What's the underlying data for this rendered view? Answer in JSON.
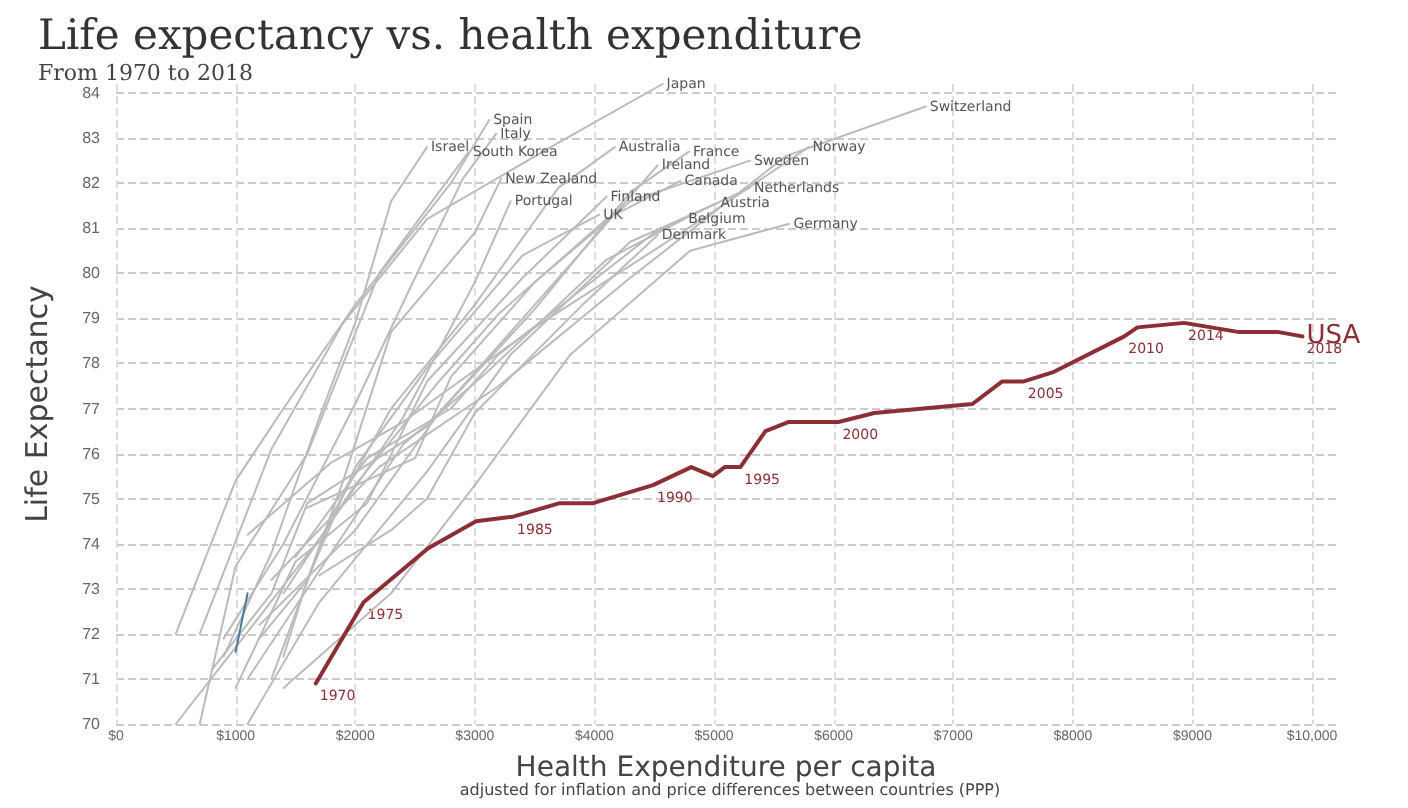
{
  "chart_data": {
    "type": "line",
    "title": "Life expectancy vs. health expenditure",
    "subtitle": "From 1970 to 2018",
    "xlabel": "Health Expenditure per capita",
    "ylabel": "Life Expectancy",
    "annotations": [
      "adjusted for inflation and price differences between countries (PPP)",
      {
        "text": "1970",
        "x": 1670,
        "y": 70.9
      },
      {
        "text": "1975",
        "x": 2070,
        "y": 72.7
      },
      {
        "text": "1985",
        "x": 3320,
        "y": 74.6
      },
      {
        "text": "1990",
        "x": 4490,
        "y": 75.3
      },
      {
        "text": "1995",
        "x": 5220,
        "y": 75.7
      },
      {
        "text": "2000",
        "x": 6040,
        "y": 76.7
      },
      {
        "text": "2005",
        "x": 7590,
        "y": 77.6
      },
      {
        "text": "2010",
        "x": 8430,
        "y": 78.6
      },
      {
        "text": "2014",
        "x": 8930,
        "y": 78.9
      },
      {
        "text": "2018",
        "x": 9920,
        "y": 78.6
      }
    ],
    "xlim": [
      0,
      10200
    ],
    "ylim": [
      70,
      84.2
    ],
    "xticks": [
      {
        "value": 0,
        "label": "$0"
      },
      {
        "value": 1000,
        "label": "$1000"
      },
      {
        "value": 2000,
        "label": "$2000"
      },
      {
        "value": 3000,
        "label": "$3000"
      },
      {
        "value": 4000,
        "label": "$4000"
      },
      {
        "value": 5000,
        "label": "$5000"
      },
      {
        "value": 6000,
        "label": "$6000"
      },
      {
        "value": 7000,
        "label": "$7000"
      },
      {
        "value": 8000,
        "label": "$8000"
      },
      {
        "value": 9000,
        "label": "$9000"
      },
      {
        "value": 10000,
        "label": "$10,000"
      }
    ],
    "yticks": [
      70,
      71,
      72,
      73,
      74,
      75,
      76,
      77,
      78,
      79,
      80,
      81,
      82,
      83,
      84
    ],
    "grid": true,
    "legend": false,
    "marker": "none",
    "line_style": "solid",
    "series": [
      {
        "name": "Japan",
        "color": "#bbbbbb",
        "x": [
          700,
          1300,
          1900,
          2600,
          3700,
          4570
        ],
        "values": [
          72.0,
          76.1,
          78.9,
          81.2,
          82.9,
          84.2
        ]
      },
      {
        "name": "Switzerland",
        "color": "#bbbbbb",
        "x": [
          1300,
          2200,
          3200,
          4300,
          5600,
          6770
        ],
        "values": [
          73.2,
          75.7,
          77.5,
          79.9,
          82.6,
          83.7
        ]
      },
      {
        "name": "Spain",
        "color": "#bbbbbb",
        "x": [
          500,
          1000,
          1400,
          2000,
          2800,
          3120
        ],
        "values": [
          72.0,
          75.4,
          77.0,
          79.3,
          82.0,
          83.4
        ]
      },
      {
        "name": "Italy",
        "color": "#bbbbbb",
        "x": [
          900,
          1400,
          2000,
          2500,
          2900,
          3180
        ],
        "values": [
          71.9,
          74.0,
          77.1,
          79.9,
          82.1,
          83.1
        ]
      },
      {
        "name": "Israel",
        "color": "#bbbbbb",
        "x": [
          900,
          1300,
          1700,
          2000,
          2300,
          2600
        ],
        "values": [
          71.5,
          73.8,
          76.8,
          78.9,
          81.6,
          82.8
        ]
      },
      {
        "name": "South Korea",
        "color": "#bbbbbb",
        "x": [
          700,
          1000,
          1600,
          2200,
          2950
        ],
        "values": [
          70.0,
          73.5,
          76.0,
          80.0,
          82.7
        ]
      },
      {
        "name": "Australia",
        "color": "#bbbbbb",
        "x": [
          1300,
          1800,
          2300,
          3000,
          3700,
          4170
        ],
        "values": [
          71.0,
          74.6,
          77.0,
          79.3,
          81.9,
          82.8
        ]
      },
      {
        "name": "France",
        "color": "#bbbbbb",
        "x": [
          1200,
          2000,
          2700,
          3500,
          4300,
          4790
        ],
        "values": [
          72.2,
          74.3,
          76.9,
          79.2,
          81.8,
          82.7
        ]
      },
      {
        "name": "Norway",
        "color": "#bbbbbb",
        "x": [
          1100,
          1800,
          2400,
          3500,
          4900,
          5790
        ],
        "values": [
          74.2,
          75.8,
          76.7,
          78.8,
          81.2,
          82.8
        ]
      },
      {
        "name": "Sweden",
        "color": "#bbbbbb",
        "x": [
          1600,
          2500,
          2800,
          3500,
          4300,
          5300
        ],
        "values": [
          74.8,
          75.9,
          77.7,
          79.8,
          81.6,
          82.5
        ]
      },
      {
        "name": "Ireland",
        "color": "#bbbbbb",
        "x": [
          800,
          1300,
          1600,
          2600,
          4000,
          4530
        ],
        "values": [
          71.2,
          72.9,
          74.9,
          76.6,
          80.8,
          82.4
        ]
      },
      {
        "name": "Canada",
        "color": "#bbbbbb",
        "x": [
          1400,
          2000,
          2700,
          3200,
          4100,
          4720
        ],
        "values": [
          72.9,
          75.3,
          77.6,
          79.1,
          81.2,
          82.05
        ]
      },
      {
        "name": "Netherlands",
        "color": "#bbbbbb",
        "x": [
          1500,
          2100,
          2800,
          3200,
          4500,
          5300
        ],
        "values": [
          73.7,
          75.9,
          77.0,
          78.2,
          80.9,
          81.9
        ]
      },
      {
        "name": "Austria",
        "color": "#bbbbbb",
        "x": [
          1100,
          1700,
          2600,
          3300,
          4300,
          5020
        ],
        "values": [
          70.0,
          72.7,
          75.6,
          78.2,
          80.7,
          81.55
        ]
      },
      {
        "name": "Belgium",
        "color": "#bbbbbb",
        "x": [
          1100,
          1700,
          2400,
          3100,
          4100,
          4750
        ],
        "values": [
          71.0,
          73.4,
          76.2,
          77.8,
          80.3,
          81.2
        ]
      },
      {
        "name": "Germany",
        "color": "#bbbbbb",
        "x": [
          1400,
          2300,
          3000,
          3800,
          4800,
          5630
        ],
        "values": [
          70.8,
          72.9,
          75.3,
          78.2,
          80.5,
          81.1
        ]
      },
      {
        "name": "Denmark",
        "color": "#bbbbbb",
        "x": [
          1700,
          2300,
          2600,
          3000,
          3900,
          4530
        ],
        "values": [
          73.3,
          74.3,
          75.0,
          76.9,
          79.3,
          80.85
        ]
      },
      {
        "name": "New Zealand",
        "color": "#bbbbbb",
        "x": [
          1400,
          1600,
          1900,
          2300,
          3000,
          3220
        ],
        "values": [
          71.5,
          73.2,
          75.4,
          78.7,
          80.9,
          82.1
        ]
      },
      {
        "name": "Portugal",
        "color": "#bbbbbb",
        "x": [
          500,
          1000,
          1700,
          2400,
          3000,
          3300
        ],
        "values": [
          70.0,
          71.7,
          74.1,
          76.8,
          79.8,
          81.6
        ]
      },
      {
        "name": "Finland",
        "color": "#bbbbbb",
        "x": [
          1000,
          1500,
          2100,
          2600,
          3400,
          4100
        ],
        "values": [
          70.8,
          73.6,
          74.9,
          77.6,
          79.9,
          81.7
        ]
      },
      {
        "name": "UK",
        "color": "#bbbbbb",
        "x": [
          1200,
          1600,
          2000,
          2600,
          3400,
          4040
        ],
        "values": [
          71.9,
          73.2,
          75.7,
          77.9,
          80.4,
          81.3
        ]
      },
      {
        "color": "#4a7a9a",
        "x": [
          1000,
          1100
        ],
        "values": [
          71.6,
          72.9
        ]
      },
      {
        "name": "USA",
        "color": "#8b2e35",
        "x": [
          1670,
          2070,
          2610,
          3010,
          3320,
          3710,
          3990,
          4490,
          4810,
          4990,
          5090,
          5220,
          5430,
          5620,
          6040,
          6340,
          7160,
          7410,
          7590,
          7830,
          8430,
          8540,
          8930,
          9380,
          9710,
          9920
        ],
        "values": [
          70.9,
          72.7,
          73.9,
          74.5,
          74.6,
          74.9,
          74.9,
          75.3,
          75.7,
          75.5,
          75.7,
          75.7,
          76.5,
          76.7,
          76.7,
          76.9,
          77.1,
          77.6,
          77.6,
          77.8,
          78.6,
          78.8,
          78.9,
          78.7,
          78.7,
          78.6
        ],
        "type": "line"
      }
    ]
  }
}
